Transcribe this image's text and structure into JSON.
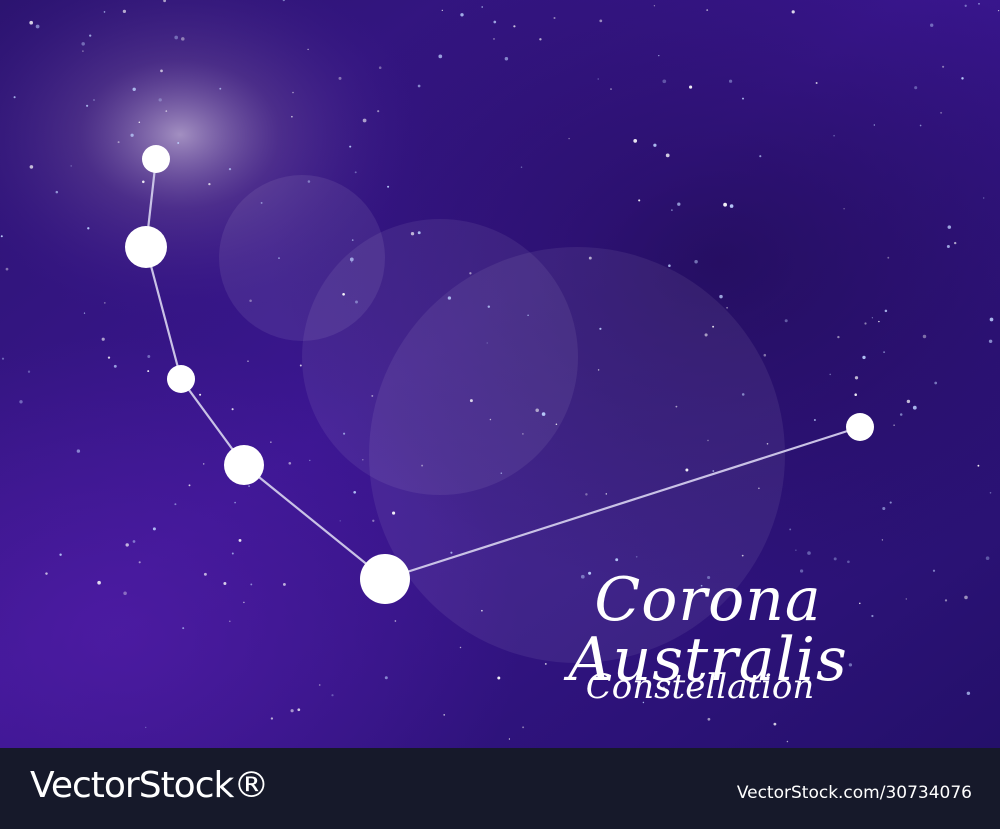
{
  "constellation": {
    "name": "Corona Australis",
    "subtitle": "Constellation",
    "stars": [
      {
        "name": "star-1"
      },
      {
        "name": "star-2"
      },
      {
        "name": "star-3"
      },
      {
        "name": "star-4"
      },
      {
        "name": "star-5"
      },
      {
        "name": "star-6"
      }
    ]
  },
  "colors": {
    "sky_purple": "#3a1690",
    "sky_dark": "#1e0f5c",
    "star": "#ffffff",
    "line": "#c9c2e6",
    "footer": "#16192a"
  },
  "watermark": {
    "brand": "VectorStock®",
    "id_text": "VectorStock.com/30734076"
  }
}
